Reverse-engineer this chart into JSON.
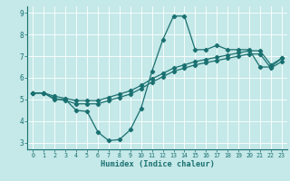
{
  "xlabel": "Humidex (Indice chaleur)",
  "xlim": [
    -0.5,
    23.5
  ],
  "ylim": [
    2.7,
    9.3
  ],
  "xticks": [
    0,
    1,
    2,
    3,
    4,
    5,
    6,
    7,
    8,
    9,
    10,
    11,
    12,
    13,
    14,
    15,
    16,
    17,
    18,
    19,
    20,
    21,
    22,
    23
  ],
  "yticks": [
    3,
    4,
    5,
    6,
    7,
    8,
    9
  ],
  "background_color": "#c5e8e8",
  "grid_color": "#ffffff",
  "line_color": "#1a7070",
  "line1_x": [
    0,
    1,
    2,
    3,
    4,
    5,
    6,
    7,
    8,
    9,
    10,
    11,
    12,
    13,
    14,
    15,
    16,
    17,
    18,
    19,
    20,
    21,
    22,
    23
  ],
  "line1_y": [
    5.3,
    5.3,
    5.0,
    5.0,
    4.5,
    4.45,
    3.5,
    3.1,
    3.15,
    3.6,
    4.6,
    6.3,
    7.75,
    8.85,
    8.85,
    7.3,
    7.3,
    7.5,
    7.3,
    7.3,
    7.3,
    6.5,
    6.5,
    6.9
  ],
  "line2_x": [
    0,
    1,
    2,
    3,
    4,
    5,
    6,
    7,
    8,
    9,
    10,
    11,
    12,
    13,
    14,
    15,
    16,
    17,
    18,
    19,
    20,
    21,
    22,
    23
  ],
  "line2_y": [
    5.3,
    5.3,
    5.15,
    5.05,
    4.95,
    4.95,
    4.95,
    5.1,
    5.25,
    5.4,
    5.65,
    5.95,
    6.2,
    6.45,
    6.6,
    6.75,
    6.85,
    6.95,
    7.05,
    7.15,
    7.25,
    7.25,
    6.6,
    6.9
  ],
  "line3_x": [
    0,
    1,
    2,
    3,
    4,
    5,
    6,
    7,
    8,
    9,
    10,
    11,
    12,
    13,
    14,
    15,
    16,
    17,
    18,
    19,
    20,
    21,
    22,
    23
  ],
  "line3_y": [
    5.3,
    5.3,
    5.05,
    4.95,
    4.8,
    4.8,
    4.8,
    4.95,
    5.1,
    5.25,
    5.5,
    5.8,
    6.05,
    6.3,
    6.45,
    6.6,
    6.7,
    6.8,
    6.9,
    7.0,
    7.1,
    7.1,
    6.45,
    6.75
  ]
}
